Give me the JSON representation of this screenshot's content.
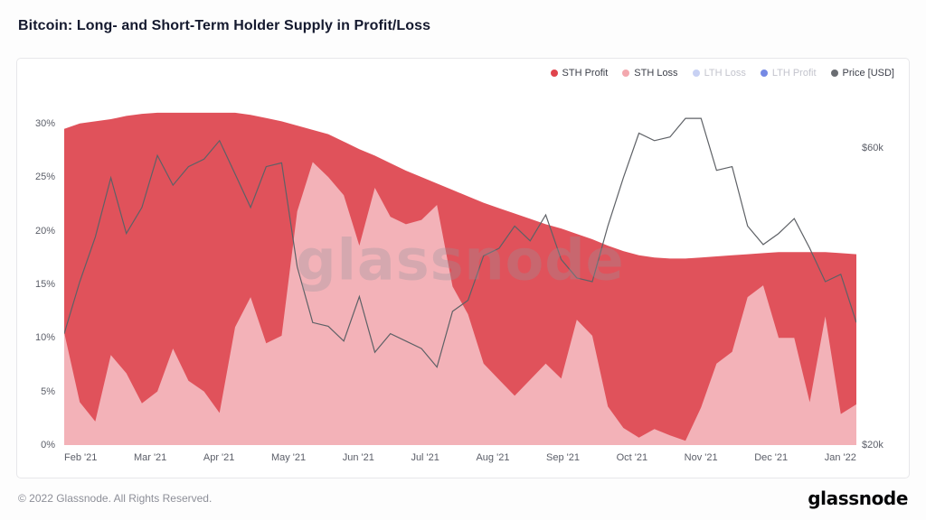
{
  "header": {
    "title": "Bitcoin: Long- and Short-Term Holder Supply in Profit/Loss"
  },
  "legend": {
    "items": [
      {
        "label": "STH Profit",
        "color": "#e0444d",
        "active": true
      },
      {
        "label": "STH Loss",
        "color": "#f3a8ae",
        "active": true
      },
      {
        "label": "LTH Loss",
        "color": "#aab8ec",
        "active": false
      },
      {
        "label": "LTH Profit",
        "color": "#2b4ad5",
        "active": false
      },
      {
        "label": "Price [USD]",
        "color": "#6a6d72",
        "active": true
      }
    ]
  },
  "watermark": "glassnode",
  "footer": {
    "copyright": "© 2022 Glassnode. All Rights Reserved.",
    "logo": "glassnode"
  },
  "chart_data": {
    "type": "area",
    "stacked": true,
    "title": "Bitcoin: Long- and Short-Term Holder Supply in Profit/Loss",
    "legend_position": "top-right",
    "grid": false,
    "ylim": [
      0,
      32
    ],
    "y2lim": [
      20,
      66.2
    ],
    "yticks": [
      "30%",
      "25%",
      "20%",
      "15%",
      "10%",
      "5%",
      "0%"
    ],
    "ytick_values": [
      30,
      25,
      20,
      15,
      10,
      5,
      0
    ],
    "y2ticks": [
      "$60k",
      "$20k"
    ],
    "y2tick_values": [
      60,
      20
    ],
    "xticks": [
      "Feb '21",
      "Mar '21",
      "Apr '21",
      "May '21",
      "Jun '21",
      "Jul '21",
      "Aug '21",
      "Sep '21",
      "Oct '21",
      "Nov '21",
      "Dec '21",
      "Jan '22"
    ],
    "dates": [
      "2021-02-01",
      "2021-02-08",
      "2021-02-15",
      "2021-02-22",
      "2021-03-01",
      "2021-03-08",
      "2021-03-15",
      "2021-03-22",
      "2021-03-29",
      "2021-04-05",
      "2021-04-12",
      "2021-04-19",
      "2021-04-26",
      "2021-05-03",
      "2021-05-10",
      "2021-05-17",
      "2021-05-24",
      "2021-05-31",
      "2021-06-07",
      "2021-06-14",
      "2021-06-21",
      "2021-06-28",
      "2021-07-05",
      "2021-07-12",
      "2021-07-19",
      "2021-07-26",
      "2021-08-02",
      "2021-08-09",
      "2021-08-16",
      "2021-08-23",
      "2021-08-30",
      "2021-09-06",
      "2021-09-13",
      "2021-09-20",
      "2021-09-27",
      "2021-10-04",
      "2021-10-11",
      "2021-10-18",
      "2021-10-25",
      "2021-11-01",
      "2021-11-08",
      "2021-11-15",
      "2021-11-22",
      "2021-11-29",
      "2021-12-06",
      "2021-12-13",
      "2021-12-20",
      "2021-12-27",
      "2022-01-03",
      "2022-01-10",
      "2022-01-17",
      "2022-01-24"
    ],
    "series": [
      {
        "name": "STH Profit",
        "axis": "left",
        "kind": "area",
        "color": "#e0525b",
        "values": [
          19,
          26,
          28,
          22,
          24,
          27,
          26,
          22,
          25,
          26,
          28,
          20,
          17,
          21,
          20,
          8,
          3,
          4,
          5,
          9,
          3,
          5,
          5,
          4,
          2,
          9,
          11,
          15,
          16,
          17,
          15,
          13,
          14,
          8,
          9,
          15,
          16.5,
          17,
          16,
          16.5,
          17,
          14,
          10,
          9,
          4,
          3,
          8,
          8,
          14,
          6,
          15,
          14
        ]
      },
      {
        "name": "STH Loss",
        "axis": "left",
        "kind": "area",
        "color": "#f3b2b8",
        "values": [
          10.5,
          4,
          2.2,
          8.4,
          6.7,
          3.9,
          5,
          9,
          6,
          5,
          3,
          11,
          13.8,
          9.5,
          10.2,
          21.8,
          26.4,
          25,
          23.3,
          18.6,
          24,
          21.3,
          20.6,
          21,
          22.4,
          14.8,
          12.2,
          7.6,
          6.1,
          4.6,
          6.1,
          7.6,
          6.2,
          11.7,
          10.2,
          3.6,
          1.6,
          0.7,
          1.5,
          0.9,
          0.4,
          3.5,
          7.6,
          8.7,
          13.8,
          14.9,
          10,
          10,
          4,
          12,
          2.9,
          3.8
        ]
      },
      {
        "name": "LTH Loss",
        "axis": "left",
        "kind": "area",
        "color": "#aab8ec",
        "hidden": true,
        "values": []
      },
      {
        "name": "LTH Profit",
        "axis": "left",
        "kind": "area",
        "color": "#2b4ad5",
        "hidden": true,
        "values": []
      },
      {
        "name": "Price [USD]",
        "axis": "right",
        "kind": "line",
        "color": "#5e6166",
        "values": [
          35,
          42,
          48,
          56,
          48.5,
          52,
          59,
          55,
          57.5,
          58.5,
          61,
          56.5,
          52,
          57.5,
          58,
          44,
          36.5,
          36,
          34,
          40,
          32.5,
          35,
          34,
          33,
          30.5,
          38,
          39.5,
          45.5,
          46.5,
          49.5,
          47.5,
          51,
          45,
          42.5,
          42,
          49.5,
          56,
          62,
          61,
          61.5,
          64,
          64,
          57,
          57.5,
          49.5,
          47,
          48.5,
          50.5,
          46.5,
          42,
          43,
          36.5
        ]
      }
    ]
  }
}
